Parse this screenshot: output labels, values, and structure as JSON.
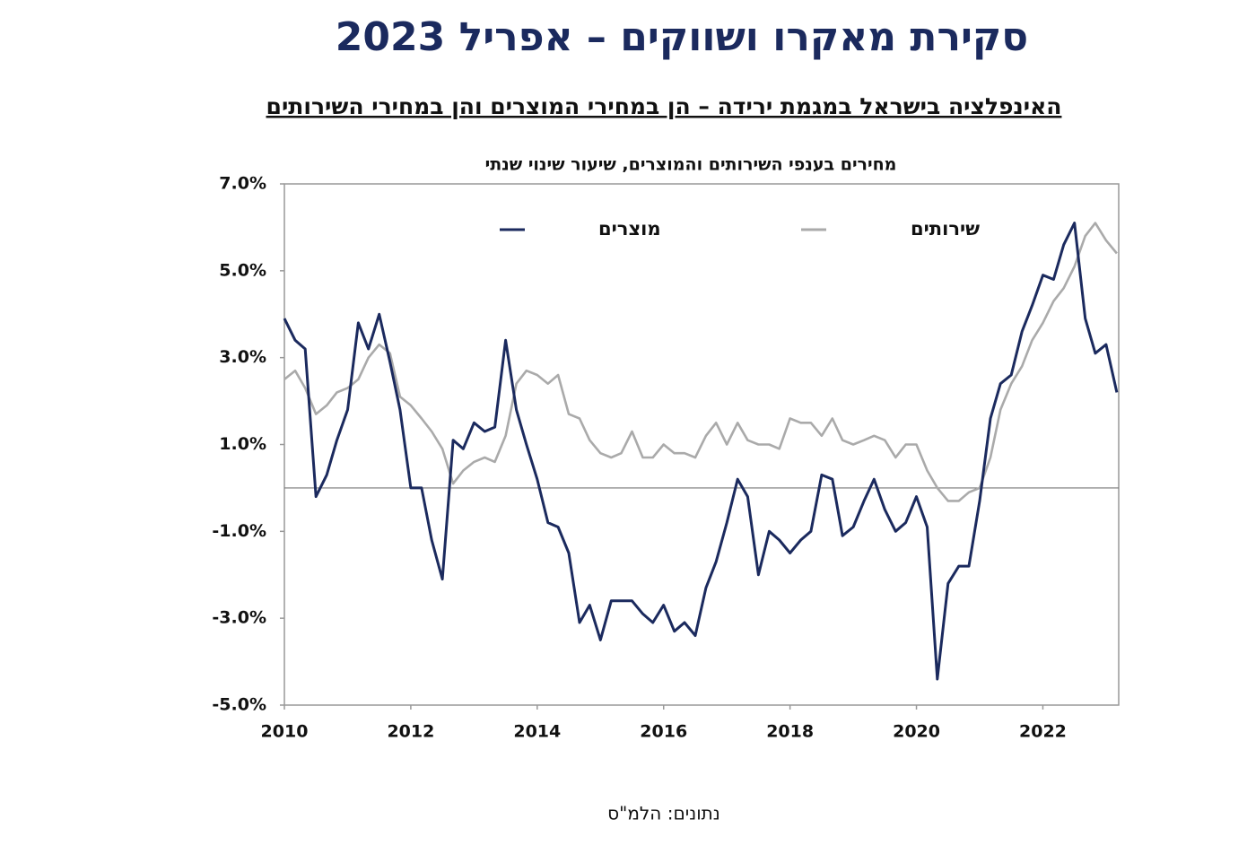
{
  "title": "סקירת מאקרו ושווקים –  אפריל 2023",
  "subtitle": "האינפלציה בישראל במגמת ירידה – הן במחירי המוצרים והן במחירי השירותים",
  "source": "נתונים:  הלמ\"ס",
  "chart_data": {
    "type": "line",
    "title": "מחירים בענפי השירותים והמוצרים, שיעור שינוי שנתי",
    "x": [
      2010,
      2010.17,
      2010.33,
      2010.5,
      2010.67,
      2010.83,
      2011,
      2011.17,
      2011.33,
      2011.5,
      2011.67,
      2011.83,
      2012,
      2012.17,
      2012.33,
      2012.5,
      2012.67,
      2012.83,
      2013,
      2013.17,
      2013.33,
      2013.5,
      2013.67,
      2013.83,
      2014,
      2014.17,
      2014.33,
      2014.5,
      2014.67,
      2014.83,
      2015,
      2015.17,
      2015.33,
      2015.5,
      2015.67,
      2015.83,
      2016,
      2016.17,
      2016.33,
      2016.5,
      2016.67,
      2016.83,
      2017,
      2017.17,
      2017.33,
      2017.5,
      2017.67,
      2017.83,
      2018,
      2018.17,
      2018.33,
      2018.5,
      2018.67,
      2018.83,
      2019,
      2019.17,
      2019.33,
      2019.5,
      2019.67,
      2019.83,
      2020,
      2020.17,
      2020.33,
      2020.5,
      2020.67,
      2020.83,
      2021,
      2021.17,
      2021.33,
      2021.5,
      2021.67,
      2021.83,
      2022,
      2022.17,
      2022.33,
      2022.5,
      2022.67,
      2022.83,
      2023,
      2023.17
    ],
    "series": [
      {
        "name": "מוצרים",
        "color": "#1b2a5e",
        "values": [
          3.9,
          3.4,
          3.2,
          -0.2,
          0.3,
          1.1,
          1.8,
          3.8,
          3.2,
          4.0,
          2.9,
          1.8,
          0.0,
          0.0,
          -1.2,
          -2.1,
          1.1,
          0.9,
          1.5,
          1.3,
          1.4,
          3.4,
          1.8,
          1.0,
          0.2,
          -0.8,
          -0.9,
          -1.5,
          -3.1,
          -2.7,
          -3.5,
          -2.6,
          -2.6,
          -2.6,
          -2.9,
          -3.1,
          -2.7,
          -3.3,
          -3.1,
          -3.4,
          -2.3,
          -1.7,
          -0.8,
          0.2,
          -0.2,
          -2.0,
          -1.0,
          -1.2,
          -1.5,
          -1.2,
          -1.0,
          0.3,
          0.2,
          -1.1,
          -0.9,
          -0.3,
          0.2,
          -0.5,
          -1.0,
          -0.8,
          -0.2,
          -0.9,
          -4.4,
          -2.2,
          -1.8,
          -1.8,
          -0.3,
          1.6,
          2.4,
          2.6,
          3.6,
          4.2,
          4.9,
          4.8,
          5.6,
          6.1,
          3.9,
          3.1,
          3.3,
          2.2
        ]
      },
      {
        "name": "שירותים",
        "color": "#aaaaaa",
        "values": [
          2.5,
          2.7,
          2.3,
          1.7,
          1.9,
          2.2,
          2.3,
          2.5,
          3.0,
          3.3,
          3.1,
          2.1,
          1.9,
          1.6,
          1.3,
          0.9,
          0.1,
          0.4,
          0.6,
          0.7,
          0.6,
          1.2,
          2.4,
          2.7,
          2.6,
          2.4,
          2.6,
          1.7,
          1.6,
          1.1,
          0.8,
          0.7,
          0.8,
          1.3,
          0.7,
          0.7,
          1.0,
          0.8,
          0.8,
          0.7,
          1.2,
          1.5,
          1.0,
          1.5,
          1.1,
          1.0,
          1.0,
          0.9,
          1.6,
          1.5,
          1.5,
          1.2,
          1.6,
          1.1,
          1.0,
          1.1,
          1.2,
          1.1,
          0.7,
          1.0,
          1.0,
          0.4,
          0.0,
          -0.3,
          -0.3,
          -0.1,
          0.0,
          0.7,
          1.8,
          2.4,
          2.8,
          3.4,
          3.8,
          4.3,
          4.6,
          5.1,
          5.8,
          6.1,
          5.7,
          5.4
        ]
      }
    ],
    "xlim": [
      2010,
      2023.2
    ],
    "xticks": [
      2010,
      2012,
      2014,
      2016,
      2018,
      2020,
      2022
    ],
    "ylim": [
      -5,
      7
    ],
    "yticks": [
      {
        "value": 7,
        "label": "7.0%"
      },
      {
        "value": 5,
        "label": "5.0%"
      },
      {
        "value": 3,
        "label": "3.0%"
      },
      {
        "value": 1,
        "label": "1.0%"
      },
      {
        "value": -1,
        "label": "-1.0%"
      },
      {
        "value": -3,
        "label": "-3.0%"
      },
      {
        "value": -5,
        "label": "-5.0%"
      }
    ],
    "legend": "top"
  }
}
